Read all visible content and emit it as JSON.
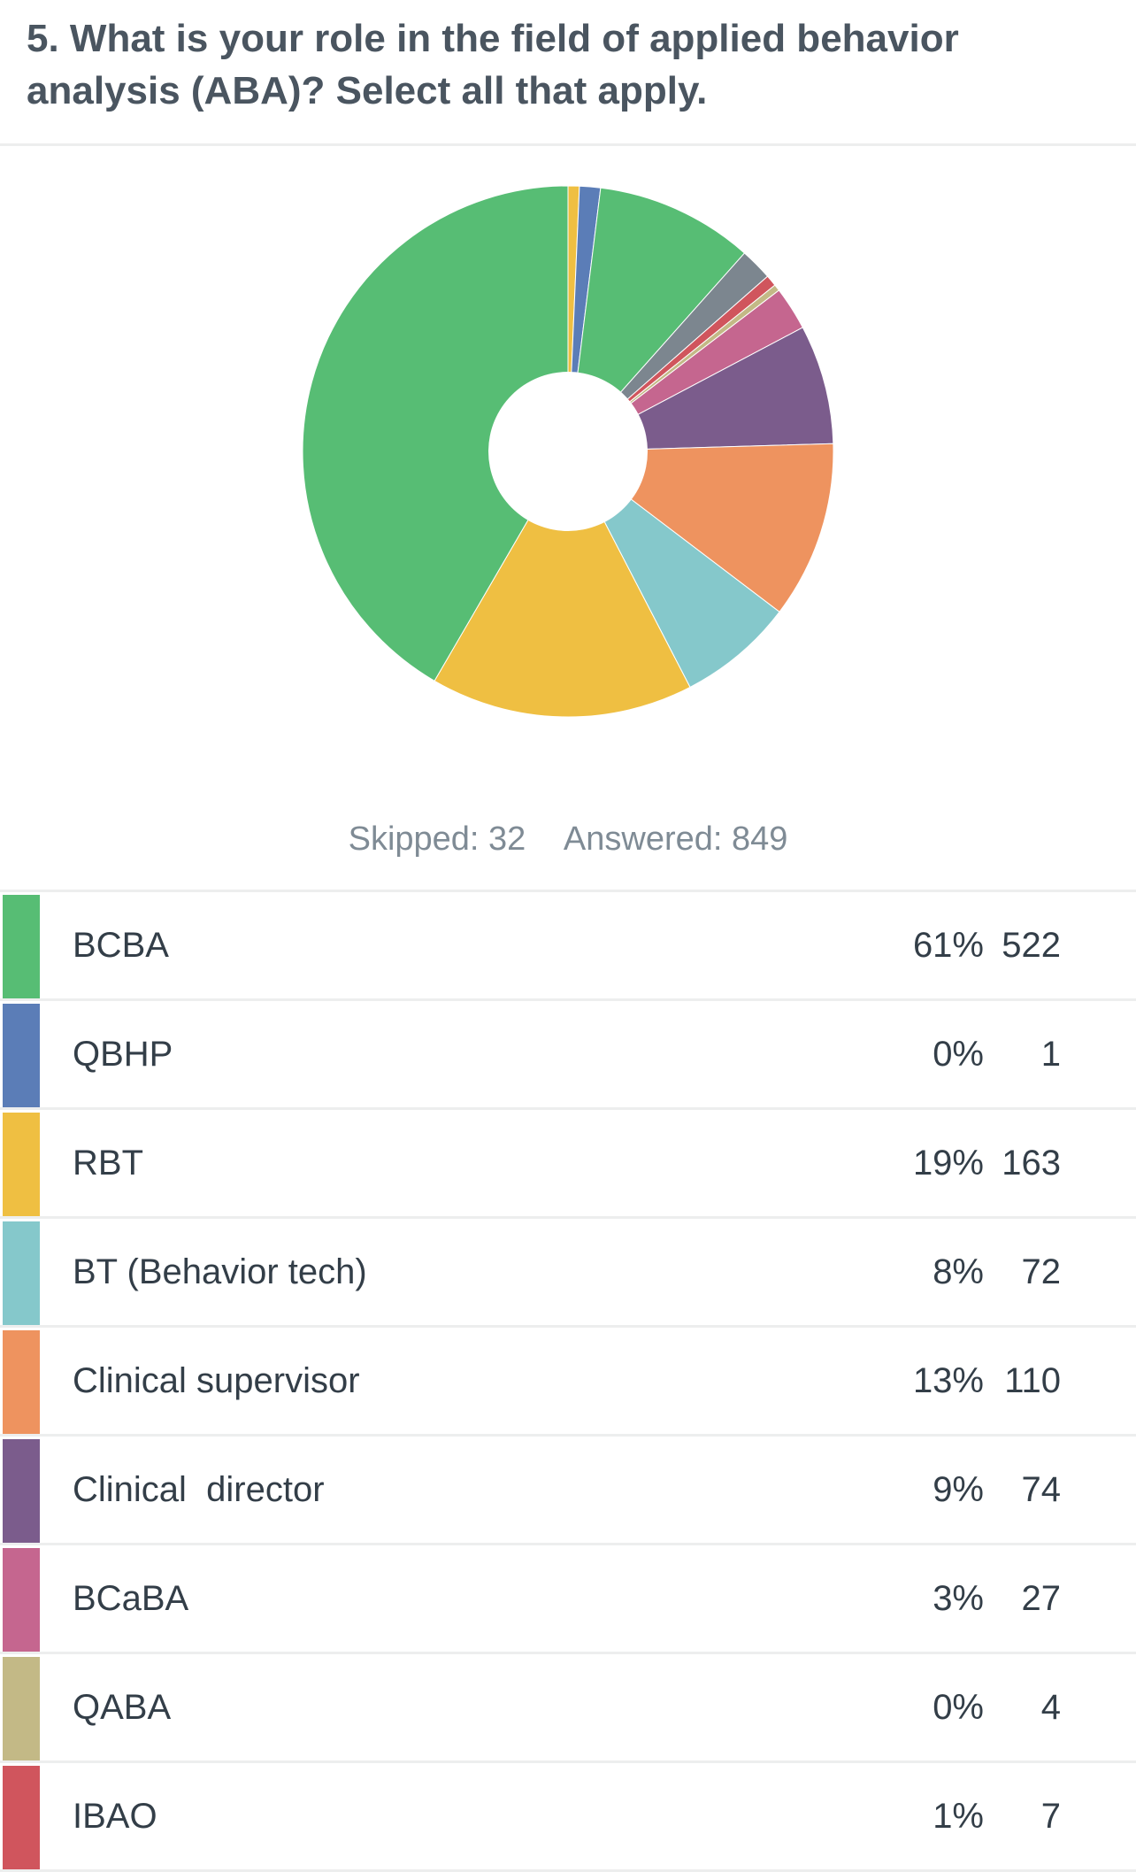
{
  "question": {
    "title": "5. What is your role in the field of applied behavior analysis (ABA)? Select all that apply."
  },
  "summary": {
    "skipped": "Skipped: 32",
    "answered": "Answered: 849"
  },
  "chart_data": {
    "type": "pie",
    "donut": true,
    "title": "",
    "start_angle": "12 o'clock",
    "direction": "clockwise",
    "legend": "none",
    "slices": [
      {
        "label": "Slice 1",
        "value": 7,
        "color": "#efbf42"
      },
      {
        "label": "Slice 2",
        "value": 13,
        "color": "#5b7db7"
      },
      {
        "label": "Slice 3",
        "value": 98,
        "color": "#57bd74"
      },
      {
        "label": "Slice 4",
        "value": 20,
        "color": "#7c868f"
      },
      {
        "label": "Slice 5",
        "value": 7,
        "color": "#d0555d"
      },
      {
        "label": "Slice 6",
        "value": 4,
        "color": "#c3b986"
      },
      {
        "label": "Slice 7",
        "value": 27,
        "color": "#c5668f"
      },
      {
        "label": "Slice 8",
        "value": 74,
        "color": "#7b5c8c"
      },
      {
        "label": "Slice 9",
        "value": 110,
        "color": "#ee935f"
      },
      {
        "label": "Slice 10",
        "value": 72,
        "color": "#85c8cb"
      },
      {
        "label": "Slice 11",
        "value": 163,
        "color": "#efbf42"
      },
      {
        "label": "Slice 12",
        "value": 424,
        "color": "#57bd74"
      }
    ]
  },
  "table": {
    "rows": [
      {
        "label": "BCBA",
        "percent": "61%",
        "count": "522",
        "color": "#57bd74"
      },
      {
        "label": "QBHP",
        "percent": "0%",
        "count": "1",
        "color": "#5b7db7"
      },
      {
        "label": "RBT",
        "percent": "19%",
        "count": "163",
        "color": "#efbf42"
      },
      {
        "label": "BT (Behavior tech)",
        "percent": "8%",
        "count": "72",
        "color": "#85c8cb"
      },
      {
        "label": "Clinical supervisor",
        "percent": "13%",
        "count": "110",
        "color": "#ee935f"
      },
      {
        "label": "Clinical  director",
        "percent": "9%",
        "count": "74",
        "color": "#7b5c8c"
      },
      {
        "label": "BCaBA",
        "percent": "3%",
        "count": "27",
        "color": "#c5668f"
      },
      {
        "label": "QABA",
        "percent": "0%",
        "count": "4",
        "color": "#c3b986"
      },
      {
        "label": "IBAO",
        "percent": "1%",
        "count": "7",
        "color": "#d0555d"
      }
    ]
  }
}
